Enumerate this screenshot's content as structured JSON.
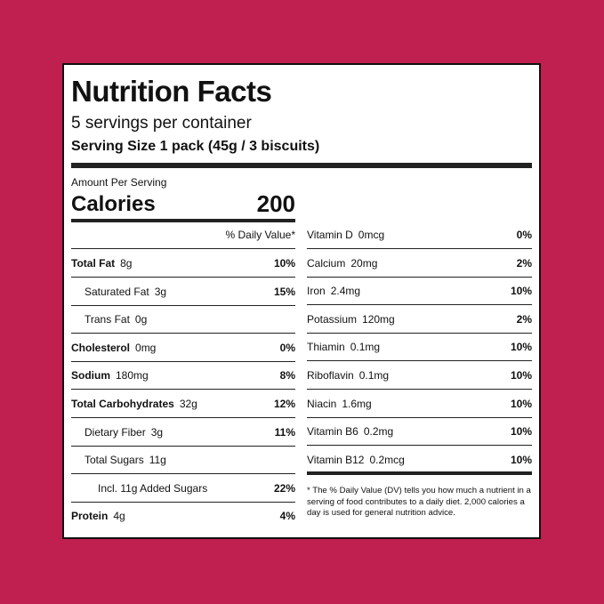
{
  "header": {
    "title": "Nutrition Facts",
    "servings": "5 servings per container",
    "serving_size": "Serving Size 1 pack (45g / 3 biscuits)"
  },
  "amount_per_serving": "Amount Per Serving",
  "calories": {
    "label": "Calories",
    "value": "200"
  },
  "dv_header": "% Daily Value*",
  "left_rows": [
    {
      "name": "Total Fat",
      "amount": "8g",
      "dv": "10%"
    },
    {
      "name": "Saturated Fat",
      "amount": "3g",
      "dv": "15%"
    },
    {
      "name": "Trans Fat",
      "amount": "0g"
    },
    {
      "name": "Cholesterol",
      "amount": "0mg",
      "dv": "0%"
    },
    {
      "name": "Sodium",
      "amount": "180mg",
      "dv": "8%"
    },
    {
      "name": "Total Carbohydrates",
      "amount": "32g",
      "dv": "12%"
    },
    {
      "name": "Dietary Fiber",
      "amount": "3g",
      "dv": "11%"
    },
    {
      "name": "Total Sugars",
      "amount": "11g"
    },
    {
      "name": "Incl. 11g Added Sugars",
      "dv": "22%"
    },
    {
      "name": "Protein",
      "amount": "4g",
      "dv": "4%"
    }
  ],
  "right_rows": [
    {
      "name": "Vitamin D",
      "amount": "0mcg",
      "dv": "0%"
    },
    {
      "name": "Calcium",
      "amount": "20mg",
      "dv": "2%"
    },
    {
      "name": "Iron",
      "amount": "2.4mg",
      "dv": "10%"
    },
    {
      "name": "Potassium",
      "amount": "120mg",
      "dv": "2%"
    },
    {
      "name": "Thiamin",
      "amount": "0.1mg",
      "dv": "10%"
    },
    {
      "name": "Riboflavin",
      "amount": "0.1mg",
      "dv": "10%"
    },
    {
      "name": "Niacin",
      "amount": "1.6mg",
      "dv": "10%"
    },
    {
      "name": "Vitamin B6",
      "amount": "0.2mg",
      "dv": "10%"
    },
    {
      "name": "Vitamin B12",
      "amount": "0.2mcg",
      "dv": "10%"
    }
  ],
  "footnote": "* The % Daily Value (DV) tells you how much a nutrient in a serving of food contributes to a daily diet. 2,000 calories a day is used for general nutrition advice."
}
